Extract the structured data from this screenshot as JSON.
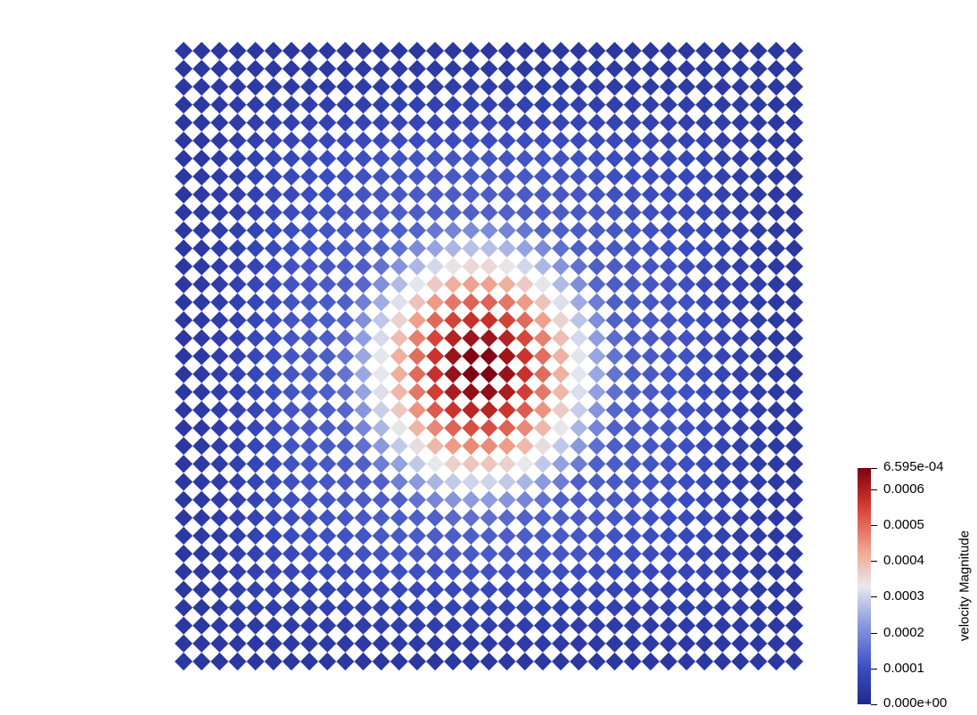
{
  "render": {
    "field": "velocity Magnitude",
    "grid_cells": 35,
    "colormap": [
      "#3b4cc0",
      "#dddddd",
      "#b40426"
    ],
    "colormap_stops": [
      {
        "value": 0.0,
        "color": "#1f2a8a"
      },
      {
        "value": 0.15,
        "color": "#3b4cc0"
      },
      {
        "value": 0.35,
        "color": "#8f9fe0"
      },
      {
        "value": 0.5,
        "color": "#e8e8ee"
      },
      {
        "value": 0.65,
        "color": "#f0a590"
      },
      {
        "value": 0.85,
        "color": "#d0372f"
      },
      {
        "value": 1.0,
        "color": "#7a0010"
      }
    ]
  },
  "colorbar": {
    "title": "velocity Magnitude",
    "range": [
      0.0,
      0.0006595
    ],
    "max_label": "6.595e-04",
    "min_label": "0.000e+00",
    "ticks": [
      {
        "value": 0.0006,
        "label": "0.0006"
      },
      {
        "value": 0.0005,
        "label": "0.0005"
      },
      {
        "value": 0.0004,
        "label": "0.0004"
      },
      {
        "value": 0.0003,
        "label": "0.0003"
      },
      {
        "value": 0.0002,
        "label": "0.0002"
      },
      {
        "value": 0.0001,
        "label": "0.0001"
      }
    ]
  }
}
